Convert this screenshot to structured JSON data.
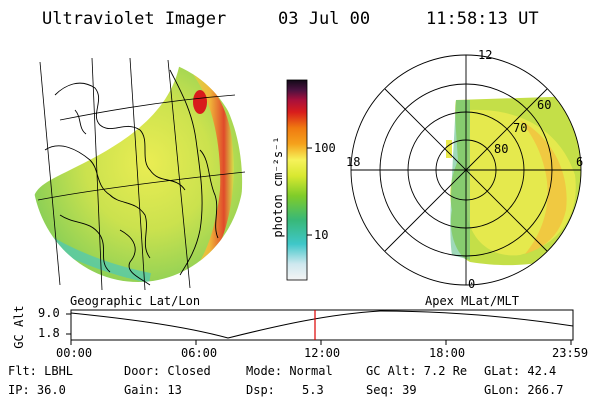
{
  "header": {
    "title": "Ultraviolet Imager",
    "date": "03 Jul 00",
    "time": "11:58:13 UT"
  },
  "colorbar": {
    "label": "photon cm⁻²s⁻¹",
    "ticks": [
      "100",
      "10"
    ]
  },
  "left_panel": {
    "caption": "Geographic Lat/Lon"
  },
  "right_panel": {
    "caption": "Apex MLat/MLT",
    "mlt_labels": {
      "top": "12",
      "left": "18",
      "right": "6",
      "bottom": "0"
    },
    "lat_labels": [
      "60",
      "70",
      "80"
    ]
  },
  "altitude_plot": {
    "ylabel": "GC Alt",
    "yticks": [
      "9.0",
      "1.8"
    ],
    "xticks": [
      "00:00",
      "06:00",
      "12:00",
      "18:00",
      "23:59"
    ],
    "marker_color": "#dd0000",
    "current_time_fraction": 0.499
  },
  "status": {
    "filter": "Flt: LBHL",
    "door": "Door: Closed",
    "mode": "Mode: Normal",
    "gc_alt": "GC Alt: 7.2 Re",
    "glat": "GLat:  42.4",
    "ip": "IP: 36.0",
    "gain": "Gain: 13",
    "dsp_label": "Dsp:",
    "dsp_value": "5.3",
    "seq": "Seq: 39",
    "glon": "GLon: 266.7"
  }
}
